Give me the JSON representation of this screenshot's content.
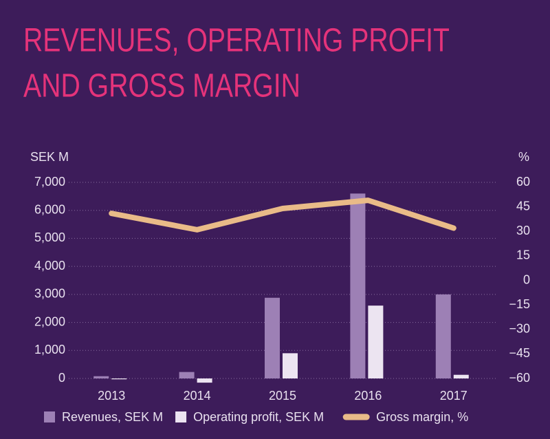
{
  "chart_data": {
    "type": "bar",
    "title": [
      "REVENUES, OPERATING PROFIT",
      "AND GROSS MARGIN"
    ],
    "ylabel": "SEK M",
    "y2label": "%",
    "categories": [
      "2013",
      "2014",
      "2015",
      "2016",
      "2017"
    ],
    "series": [
      {
        "name": "Revenues, SEK M",
        "color": "#9d80b5",
        "type": "bar",
        "values": [
          80,
          230,
          2880,
          6600,
          3000
        ]
      },
      {
        "name": "Operating profit, SEK M",
        "color": "#ece4f1",
        "type": "bar",
        "values": [
          -30,
          -150,
          900,
          2600,
          130
        ]
      },
      {
        "name": "Gross margin, %",
        "color": "#e9bb88",
        "type": "line",
        "axis": "y2",
        "values": [
          41,
          31,
          44,
          49,
          32
        ]
      }
    ],
    "ylim": [
      0,
      7000
    ],
    "yticks": [
      0,
      {
        "value": 1000,
        "label": "1,000"
      },
      {
        "value": 2000,
        "label": "2,000"
      },
      {
        "value": 3000,
        "label": "3,000"
      },
      {
        "value": 4000,
        "label": "4,000"
      },
      {
        "value": 5000,
        "label": "5,000"
      },
      {
        "value": 6000,
        "label": "6,000"
      },
      {
        "value": 7000,
        "label": "7,000"
      }
    ],
    "y2lim": [
      -60,
      60
    ],
    "y2ticks": [
      {
        "value": -60,
        "label": "−60"
      },
      {
        "value": -45,
        "label": "−45"
      },
      {
        "value": -30,
        "label": "−30"
      },
      {
        "value": -15,
        "label": "−15"
      },
      0,
      15,
      30,
      45,
      60
    ],
    "grid": true
  }
}
